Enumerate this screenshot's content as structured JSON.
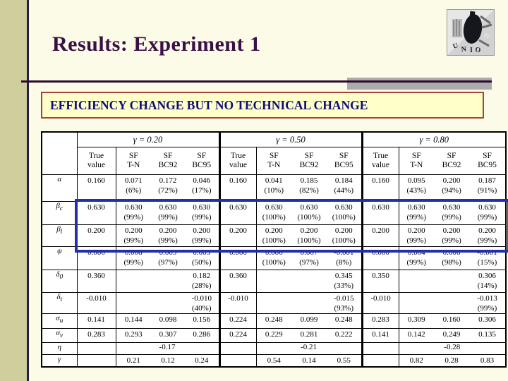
{
  "slide": {
    "title": "Results: Experiment 1",
    "banner": "EFFICIENCY CHANGE BUT NO TECHNICAL CHANGE",
    "logo_letters": "UNIO"
  },
  "colors": {
    "title_text": "#3a0f45",
    "banner_bg": "#ffffca",
    "banner_border": "#a5423a",
    "banner_text": "#0d0d78",
    "highlight_box": "#2030b0",
    "left_bar": "#cfcf9e",
    "slide_bg": "#fbfbe7"
  },
  "table": {
    "group_labels": [
      "γ = 0.20",
      "γ = 0.50",
      "γ = 0.80"
    ],
    "column_headers": [
      {
        "line1": "True",
        "line2": "value"
      },
      {
        "line1": "SF",
        "line2": "T-N"
      },
      {
        "line1": "SF",
        "line2": "BC92"
      },
      {
        "line1": "SF",
        "line2": "BC95"
      }
    ],
    "rows": [
      {
        "label": {
          "base": "α",
          "sub": ""
        },
        "groups": [
          [
            {
              "v": "0.160"
            },
            {
              "v": "0.071",
              "p": "(6%)"
            },
            {
              "v": "0.172",
              "p": "(72%)"
            },
            {
              "v": "0.046",
              "p": "(17%)"
            }
          ],
          [
            {
              "v": "0.160"
            },
            {
              "v": "0.041",
              "p": "(10%)"
            },
            {
              "v": "0.185",
              "p": "(82%)"
            },
            {
              "v": "0.184",
              "p": "(44%)"
            }
          ],
          [
            {
              "v": "0.160"
            },
            {
              "v": "0.095",
              "p": "(43%)"
            },
            {
              "v": "0.200",
              "p": "(94%)"
            },
            {
              "v": "0.187",
              "p": "(91%)"
            }
          ]
        ]
      },
      {
        "label": {
          "base": "β",
          "sub": "c"
        },
        "highlight": true,
        "groups": [
          [
            {
              "v": "0.630"
            },
            {
              "v": "0.630",
              "p": "(99%)"
            },
            {
              "v": "0.630",
              "p": "(99%)"
            },
            {
              "v": "0.630",
              "p": "(99%)"
            }
          ],
          [
            {
              "v": "0.630"
            },
            {
              "v": "0.630",
              "p": "(100%)"
            },
            {
              "v": "0.630",
              "p": "(100%)"
            },
            {
              "v": "0.630",
              "p": "(100%)"
            }
          ],
          [
            {
              "v": "0.630"
            },
            {
              "v": "0.630",
              "p": "(99%)"
            },
            {
              "v": "0.630",
              "p": "(99%)"
            },
            {
              "v": "0.630",
              "p": "(99%)"
            }
          ]
        ]
      },
      {
        "label": {
          "base": "β",
          "sub": "l"
        },
        "highlight": true,
        "groups": [
          [
            {
              "v": "0.200"
            },
            {
              "v": "0.200",
              "p": "(99%)"
            },
            {
              "v": "0.200",
              "p": "(99%)"
            },
            {
              "v": "0.200",
              "p": "(99%)"
            }
          ],
          [
            {
              "v": "0.200"
            },
            {
              "v": "0.200",
              "p": "(100%)"
            },
            {
              "v": "0.200",
              "p": "(100%)"
            },
            {
              "v": "0.200",
              "p": "(100%)"
            }
          ],
          [
            {
              "v": "0.200"
            },
            {
              "v": "0.200",
              "p": "(99%)"
            },
            {
              "v": "0.200",
              "p": "(99%)"
            },
            {
              "v": "0.200",
              "p": "(99%)"
            }
          ]
        ]
      },
      {
        "label": {
          "base": "ψ",
          "sub": ""
        },
        "groups": [
          [
            {
              "v": "0.000"
            },
            {
              "v": "0.008",
              "p": "(99%)"
            },
            {
              "v": "0.009",
              "p": "(97%)"
            },
            {
              "v": "0.003",
              "p": "(50%)"
            }
          ],
          [
            {
              "v": "0.000"
            },
            {
              "v": "0.006",
              "p": "(100%)"
            },
            {
              "v": "0.007",
              "p": "(97%)"
            },
            {
              "v": "-0.001",
              "p": "(8%)"
            }
          ],
          [
            {
              "v": "0.000"
            },
            {
              "v": "0.004",
              "p": "(99%)"
            },
            {
              "v": "0.006",
              "p": "(98%)"
            },
            {
              "v": "-0.001",
              "p": "(15%)"
            }
          ]
        ]
      },
      {
        "label": {
          "base": "δ",
          "sub": "0"
        },
        "groups": [
          [
            {
              "v": "0.360"
            },
            {},
            {},
            {
              "v": "0.182",
              "p": "(28%)"
            }
          ],
          [
            {
              "v": "0.360"
            },
            {},
            {},
            {
              "v": "0.345",
              "p": "(33%)"
            }
          ],
          [
            {
              "v": "0.350"
            },
            {},
            {},
            {
              "v": "0.306",
              "p": "(14%)"
            }
          ]
        ]
      },
      {
        "label": {
          "base": "δ",
          "sub": "t"
        },
        "groups": [
          [
            {
              "v": "-0.010"
            },
            {},
            {},
            {
              "v": "-0.010",
              "p": "(40%)"
            }
          ],
          [
            {
              "v": "-0.010"
            },
            {},
            {},
            {
              "v": "-0.015",
              "p": "(93%)"
            }
          ],
          [
            {
              "v": "-0.010"
            },
            {},
            {},
            {
              "v": "-0.013",
              "p": "(99%)"
            }
          ]
        ]
      },
      {
        "label": {
          "base": "σ",
          "sub": "u"
        },
        "groups": [
          [
            {
              "v": "0.141"
            },
            {
              "v": "0.144"
            },
            {
              "v": "0.098"
            },
            {
              "v": "0.156"
            }
          ],
          [
            {
              "v": "0.224"
            },
            {
              "v": "0.248"
            },
            {
              "v": "0.099"
            },
            {
              "v": "0.248"
            }
          ],
          [
            {
              "v": "0.283"
            },
            {
              "v": "0.309"
            },
            {
              "v": "0.160"
            },
            {
              "v": "0.306"
            }
          ]
        ]
      },
      {
        "label": {
          "base": "σ",
          "sub": "v"
        },
        "groups": [
          [
            {
              "v": "0.283"
            },
            {
              "v": "0.293"
            },
            {
              "v": "0.307"
            },
            {
              "v": "0.286"
            }
          ],
          [
            {
              "v": "0.224"
            },
            {
              "v": "0.229"
            },
            {
              "v": "0.281"
            },
            {
              "v": "0.222"
            }
          ],
          [
            {
              "v": "0.141"
            },
            {
              "v": "0.142"
            },
            {
              "v": "0.249"
            },
            {
              "v": "0.135"
            }
          ]
        ]
      },
      {
        "label": {
          "base": "η",
          "sub": ""
        },
        "span": true,
        "groups": [
          [
            {
              "v": ""
            },
            {
              "v": "-0.17"
            }
          ],
          [
            {
              "v": ""
            },
            {
              "v": "-0.21"
            }
          ],
          [
            {
              "v": ""
            },
            {
              "v": "-0.28"
            }
          ]
        ]
      },
      {
        "label": {
          "base": "γ",
          "sub": ""
        },
        "groups": [
          [
            {
              "v": ""
            },
            {
              "v": "0.21"
            },
            {
              "v": "0.12"
            },
            {
              "v": "0.24"
            }
          ],
          [
            {
              "v": ""
            },
            {
              "v": "0.54"
            },
            {
              "v": "0.14"
            },
            {
              "v": "0.55"
            }
          ],
          [
            {
              "v": ""
            },
            {
              "v": "0.82"
            },
            {
              "v": "0.28"
            },
            {
              "v": "0.83"
            }
          ]
        ]
      }
    ]
  }
}
